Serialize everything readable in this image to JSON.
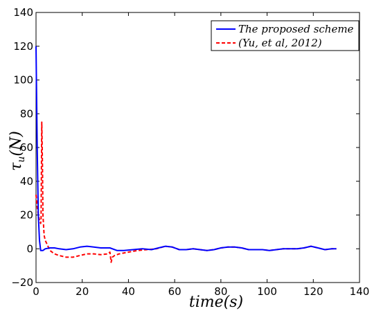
{
  "chart_data": {
    "type": "line",
    "title": "",
    "xlabel": "time(s)",
    "ylabel": "τ_u(N)",
    "xlim": [
      0,
      140
    ],
    "ylim": [
      -20,
      140
    ],
    "xticks": [
      0,
      20,
      40,
      60,
      80,
      100,
      120,
      140
    ],
    "yticks": [
      -20,
      0,
      20,
      40,
      60,
      80,
      100,
      120,
      140
    ],
    "xtick_labels": [
      "0",
      "20",
      "40",
      "60",
      "80",
      "100",
      "120",
      "140"
    ],
    "ytick_labels": [
      "−20",
      "0",
      "20",
      "40",
      "60",
      "80",
      "100",
      "120",
      "140"
    ],
    "grid": false,
    "legend_position": "top-right",
    "series": [
      {
        "name": "The proposed scheme",
        "color": "#0000ff",
        "style": "solid",
        "x": [
          0,
          0.5,
          1,
          1.5,
          2,
          3,
          4,
          6,
          8,
          10,
          13,
          16,
          19,
          22,
          25,
          28,
          32,
          35,
          38,
          42,
          46,
          50,
          53,
          56,
          59,
          62,
          65,
          68,
          71,
          74,
          77,
          80,
          83,
          86,
          89,
          92,
          95,
          98,
          101,
          104,
          107,
          110,
          113,
          116,
          119,
          122,
          125,
          128,
          130
        ],
        "y": [
          120,
          60,
          20,
          5,
          -1,
          -1,
          0,
          0.5,
          0.5,
          0,
          -0.5,
          0,
          1,
          1.5,
          1,
          0.5,
          0.5,
          -1,
          -1,
          -0.5,
          0,
          -0.5,
          0.5,
          1.5,
          1,
          -0.5,
          -0.5,
          0,
          -0.5,
          -1,
          -0.5,
          0.5,
          1,
          1,
          0.5,
          -0.5,
          -0.5,
          -0.5,
          -1,
          -0.5,
          0,
          0,
          0,
          0.5,
          1.5,
          0.5,
          -0.5,
          0,
          0
        ]
      },
      {
        "name": "(Yu, et al, 2012)",
        "color": "#ff0000",
        "style": "dashed",
        "x": [
          0,
          0.5,
          1,
          1.5,
          2,
          2.2,
          2.5,
          2.8,
          3,
          3.5,
          4,
          5,
          6,
          8,
          10,
          13,
          16,
          19,
          22,
          25,
          28,
          31,
          32,
          32.5,
          33,
          34,
          36,
          40,
          44,
          48,
          52,
          56,
          59,
          62,
          65,
          68,
          71,
          74,
          77,
          80,
          83,
          86,
          89,
          92,
          95,
          98,
          101,
          104,
          107,
          110,
          113,
          116,
          119,
          122,
          125,
          128,
          130
        ],
        "y": [
          32,
          25,
          20,
          17,
          15,
          18,
          75,
          50,
          20,
          8,
          5,
          2,
          -1,
          -3,
          -4,
          -5,
          -5,
          -4,
          -3,
          -3,
          -3.5,
          -3,
          -2,
          -8,
          -5,
          -4,
          -3,
          -2,
          -1,
          -0.5,
          0,
          1.5,
          1,
          -0.5,
          -0.5,
          0,
          -0.5,
          -1,
          -0.5,
          0.5,
          1,
          1,
          0.5,
          -0.5,
          -0.5,
          -0.5,
          -1,
          -0.5,
          0,
          0,
          0,
          0.5,
          1.5,
          0.5,
          -0.5,
          0,
          0
        ]
      }
    ]
  }
}
